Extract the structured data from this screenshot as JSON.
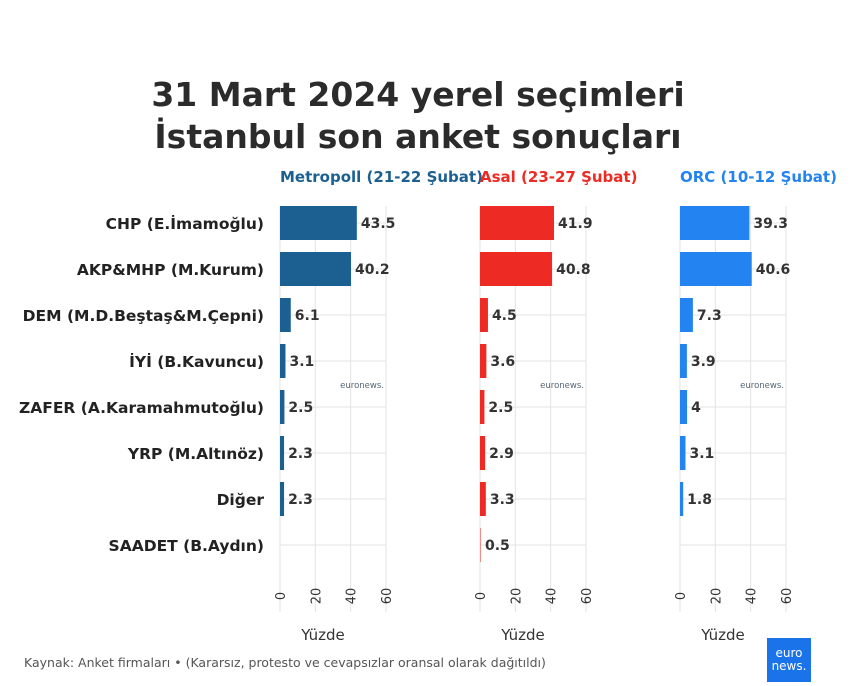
{
  "title_lines": [
    "31 Mart 2024 yerel seçimleri",
    "İstanbul son anket sonuçları"
  ],
  "source": "Kaynak: Anket firmaları • (Kararsız, protesto ve cevapsızlar oransal olarak dağıtıldı)",
  "watermark": "euronews.",
  "logo": {
    "line1": "euro",
    "line2": "news."
  },
  "chart_data": {
    "type": "bar",
    "orientation": "horizontal",
    "categories": [
      "CHP (E.İmamoğlu)",
      "AKP&MHP (M.Kurum)",
      "DEM (M.D.Beştaş&M.Çepni)",
      "İYİ (B.Kavuncu)",
      "ZAFER (A.Karamahmutoğlu)",
      "YRP (M.Altınöz)",
      "Diğer",
      "SAADET (B.Aydın)"
    ],
    "xlabel": "Yüzde",
    "xlim": [
      0,
      60
    ],
    "xticks": [
      "0",
      "20",
      "40",
      "60"
    ],
    "grid": true,
    "panels": [
      {
        "name": "Metropoll (21-22 Şubat)",
        "color": "#1b6090",
        "values": [
          43.5,
          40.2,
          6.1,
          3.1,
          2.5,
          2.3,
          2.3,
          null
        ],
        "labels": [
          "43.5",
          "40.2",
          "6.1",
          "3.1",
          "2.5",
          "2.3",
          "2.3",
          ""
        ]
      },
      {
        "name": "Asal (23-27 Şubat)",
        "color": "#ee2a24",
        "values": [
          41.9,
          40.8,
          4.5,
          3.6,
          2.5,
          2.9,
          3.3,
          0.5
        ],
        "labels": [
          "41.9",
          "40.8",
          "4.5",
          "3.6",
          "2.5",
          "2.9",
          "3.3",
          "0.5"
        ]
      },
      {
        "name": "ORC (10-12 Şubat)",
        "color": "#2383f0",
        "values": [
          39.3,
          40.6,
          7.3,
          3.9,
          4,
          3.1,
          1.8,
          null
        ],
        "labels": [
          "39.3",
          "40.6",
          "7.3",
          "3.9",
          "4",
          "3.1",
          "1.8",
          ""
        ]
      }
    ]
  }
}
